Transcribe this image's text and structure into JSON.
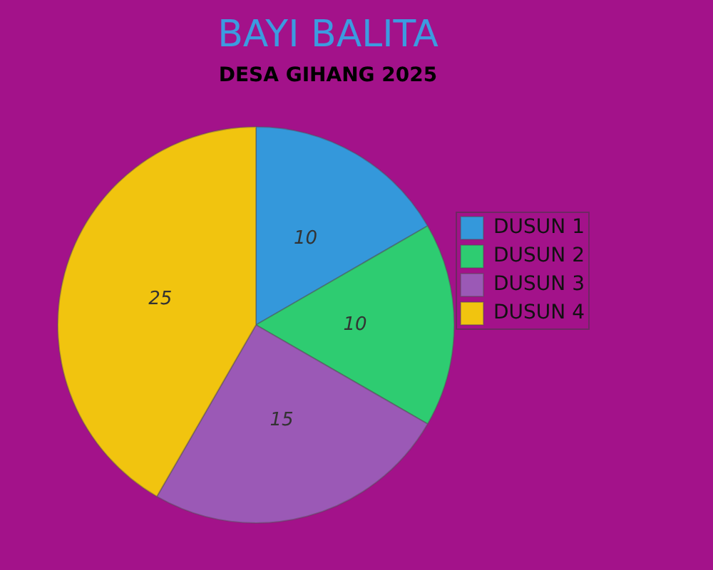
{
  "chart_data": {
    "type": "pie",
    "title": "BAYI BALITA",
    "subtitle": "DESA GIHANG 2025",
    "categories": [
      "DUSUN 1",
      "DUSUN 2",
      "DUSUN 3",
      "DUSUN 4"
    ],
    "values": [
      10,
      10,
      15,
      25
    ],
    "colors": [
      "#3498db",
      "#2ecc71",
      "#9b59b6",
      "#f1c40f"
    ],
    "legend": "right",
    "data_labels": true
  }
}
